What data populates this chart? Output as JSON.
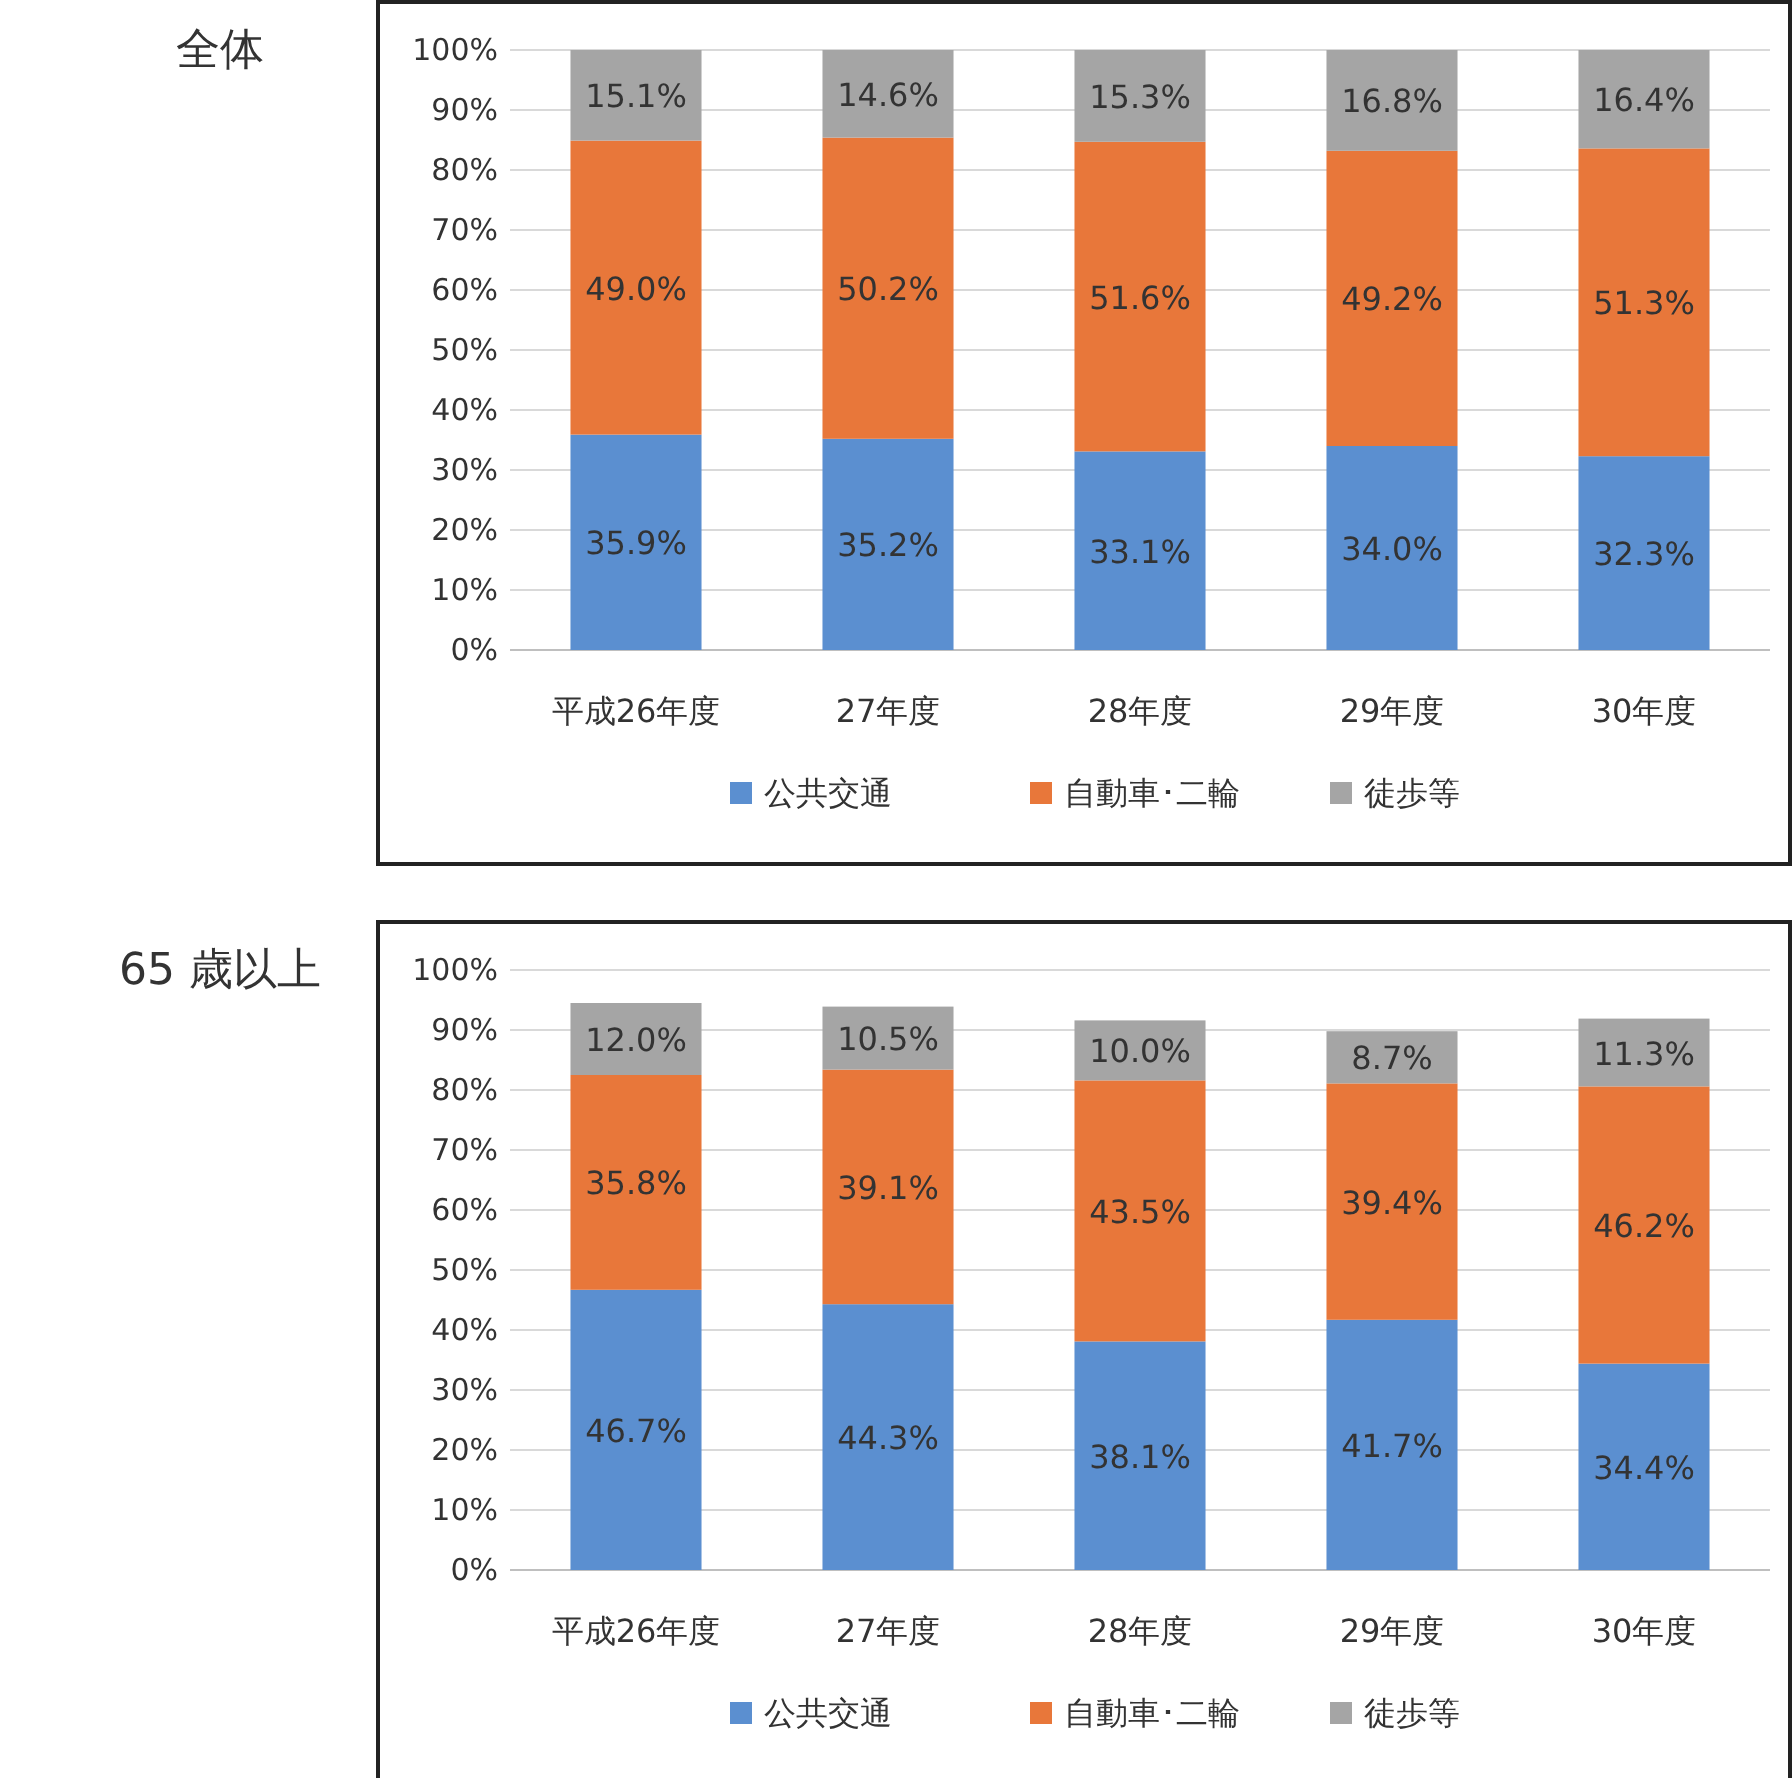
{
  "chart_data": [
    {
      "type": "bar",
      "title": "全体",
      "stacked": true,
      "grid": "y",
      "legend": "bottom",
      "categories": [
        "平成26年度",
        "27年度",
        "28年度",
        "29年度",
        "30年度"
      ],
      "ylim": [
        0,
        100
      ],
      "yticks": [
        {
          "value": 0,
          "label": "0%"
        },
        {
          "value": 10,
          "label": "10%"
        },
        {
          "value": 20,
          "label": "20%"
        },
        {
          "value": 30,
          "label": "30%"
        },
        {
          "value": 40,
          "label": "40%"
        },
        {
          "value": 50,
          "label": "50%"
        },
        {
          "value": 60,
          "label": "60%"
        },
        {
          "value": 70,
          "label": "70%"
        },
        {
          "value": 80,
          "label": "80%"
        },
        {
          "value": 90,
          "label": "90%"
        },
        {
          "value": 100,
          "label": "100%"
        }
      ],
      "series": [
        {
          "name": "公共交通",
          "color": "#5b8fd0",
          "values": [
            35.9,
            35.2,
            33.1,
            34.0,
            32.3
          ],
          "value_labels": [
            "35.9%",
            "35.2%",
            "33.1%",
            "34.0%",
            "32.3%"
          ]
        },
        {
          "name": "自動車･二輪",
          "color": "#e8773a",
          "values": [
            49.0,
            50.2,
            51.6,
            49.2,
            51.3
          ],
          "value_labels": [
            "49.0%",
            "50.2%",
            "51.6%",
            "49.2%",
            "51.3%"
          ]
        },
        {
          "name": "徒歩等",
          "color": "#a5a5a5",
          "values": [
            15.1,
            14.6,
            15.3,
            16.8,
            16.4
          ],
          "value_labels": [
            "15.1%",
            "14.6%",
            "15.3%",
            "16.8%",
            "16.4%"
          ]
        }
      ]
    },
    {
      "type": "bar",
      "title": "65 歳以上",
      "stacked": true,
      "grid": "y",
      "legend": "bottom",
      "categories": [
        "平成26年度",
        "27年度",
        "28年度",
        "29年度",
        "30年度"
      ],
      "ylim": [
        0,
        100
      ],
      "yticks": [
        {
          "value": 0,
          "label": "0%"
        },
        {
          "value": 10,
          "label": "10%"
        },
        {
          "value": 20,
          "label": "20%"
        },
        {
          "value": 30,
          "label": "30%"
        },
        {
          "value": 40,
          "label": "40%"
        },
        {
          "value": 50,
          "label": "50%"
        },
        {
          "value": 60,
          "label": "60%"
        },
        {
          "value": 70,
          "label": "70%"
        },
        {
          "value": 80,
          "label": "80%"
        },
        {
          "value": 90,
          "label": "90%"
        },
        {
          "value": 100,
          "label": "100%"
        }
      ],
      "series": [
        {
          "name": "公共交通",
          "color": "#5b8fd0",
          "values": [
            46.7,
            44.3,
            38.1,
            41.7,
            34.4
          ],
          "value_labels": [
            "46.7%",
            "44.3%",
            "38.1%",
            "41.7%",
            "34.4%"
          ]
        },
        {
          "name": "自動車･二輪",
          "color": "#e8773a",
          "values": [
            35.8,
            39.1,
            43.5,
            39.4,
            46.2
          ],
          "value_labels": [
            "35.8%",
            "39.1%",
            "43.5%",
            "39.4%",
            "46.2%"
          ]
        },
        {
          "name": "徒歩等",
          "color": "#a5a5a5",
          "values": [
            12.0,
            10.5,
            10.0,
            8.7,
            11.3
          ],
          "value_labels": [
            "12.0%",
            "10.5%",
            "10.0%",
            "8.7%",
            "11.3%"
          ]
        }
      ]
    }
  ]
}
